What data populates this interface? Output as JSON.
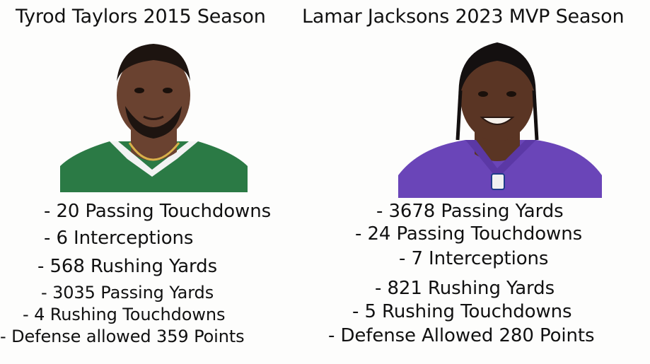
{
  "left": {
    "title": "Tyrod Taylors 2015 Season",
    "stats": [
      "- 20 Passing Touchdowns",
      "- 6 Interceptions",
      "- 568 Rushing Yards",
      "- 3035 Passing Yards",
      "- 4 Rushing Touchdowns",
      "- Defense allowed 359 Points"
    ]
  },
  "right": {
    "title": "Lamar Jacksons 2023 MVP Season",
    "stats": [
      "- 3678 Passing Yards",
      "- 24 Passing Touchdowns",
      "- 7 Interceptions",
      "- 821 Rushing Yards",
      "- 5 Rushing Touchdowns",
      "- Defense Allowed 280 Points"
    ]
  },
  "colors": {
    "left_jersey": "#2b7a45",
    "right_jersey": "#6a45b8",
    "skin_left": "#6a4230",
    "skin_right": "#5a3524"
  }
}
